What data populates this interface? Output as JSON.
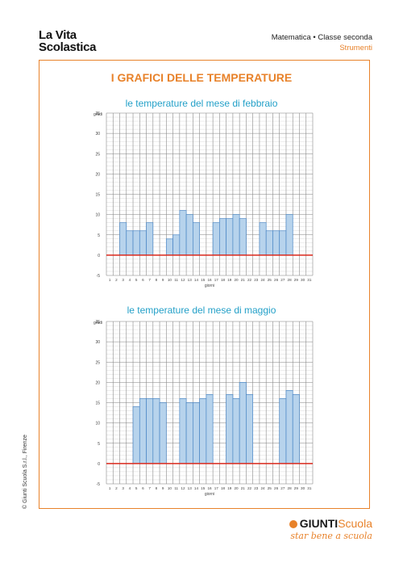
{
  "header": {
    "logo_line1": "La Vita",
    "logo_line2": "Scolastica",
    "subject": "Matematica • Classe seconda",
    "section": "Strumenti"
  },
  "page_title": "I GRAFICI DELLE TEMPERATURE",
  "copyright": "© Giunti Scuola S.r.l., Firenze",
  "brand": {
    "name": "GIUNTI",
    "name_accent": "Scuola",
    "tagline": "star bene a scuola"
  },
  "colors": {
    "accent": "#e8822a",
    "title_blue": "#23a0c8",
    "bar_fill": "#b7d3ec",
    "bar_stroke": "#4a86c5",
    "zero_line": "#d9281c"
  },
  "chart_data": [
    {
      "type": "bar",
      "title": "le temperature del mese di febbraio",
      "ylabel": "gradi",
      "xlabel": "giorni",
      "ylim": [
        -5,
        35
      ],
      "yticks": [
        -5,
        0,
        5,
        10,
        15,
        20,
        25,
        30,
        35
      ],
      "grid": true,
      "categories": [
        "1",
        "2",
        "3",
        "4",
        "5",
        "6",
        "7",
        "8",
        "9",
        "10",
        "11",
        "12",
        "13",
        "14",
        "15",
        "16",
        "17",
        "18",
        "19",
        "20",
        "21",
        "22",
        "23",
        "24",
        "25",
        "26",
        "27",
        "28",
        "29",
        "30",
        "31"
      ],
      "values": [
        null,
        null,
        8,
        6,
        6,
        6,
        8,
        null,
        null,
        4,
        5,
        11,
        10,
        8,
        null,
        null,
        8,
        9,
        9,
        10,
        9,
        null,
        null,
        8,
        6,
        6,
        6,
        10,
        null,
        null,
        null
      ]
    },
    {
      "type": "bar",
      "title": "le temperature del mese di maggio",
      "ylabel": "gradi",
      "xlabel": "giorni",
      "ylim": [
        -5,
        35
      ],
      "yticks": [
        -5,
        0,
        5,
        10,
        15,
        20,
        25,
        30,
        35
      ],
      "grid": true,
      "categories": [
        "1",
        "2",
        "3",
        "4",
        "5",
        "6",
        "7",
        "8",
        "9",
        "10",
        "11",
        "12",
        "13",
        "14",
        "15",
        "16",
        "17",
        "18",
        "19",
        "20",
        "21",
        "22",
        "23",
        "24",
        "25",
        "26",
        "27",
        "28",
        "29",
        "30",
        "31"
      ],
      "values": [
        null,
        null,
        null,
        null,
        14,
        16,
        16,
        16,
        15,
        null,
        null,
        16,
        15,
        15,
        16,
        17,
        null,
        null,
        17,
        16,
        20,
        17,
        null,
        null,
        null,
        null,
        16,
        18,
        17,
        null,
        null
      ]
    }
  ]
}
